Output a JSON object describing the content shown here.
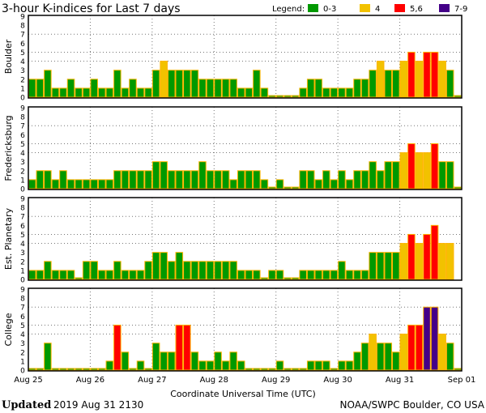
{
  "chart_data": {
    "type": "bar",
    "title": "3-hour K-indices for Last 7 days",
    "legend": {
      "label": "Legend:",
      "placement": "top-right",
      "entries": [
        {
          "label": "0-3",
          "color": "#009900"
        },
        {
          "label": "4",
          "color": "#f2c200"
        },
        {
          "label": "5,6",
          "color": "#ff0000"
        },
        {
          "label": "7-9",
          "color": "#440088"
        }
      ]
    },
    "bar_border_color": "#ffb400",
    "xlabel": "Coordinate Universal Time (UTC)",
    "x_tick_labels": [
      "Aug 25",
      "Aug 26",
      "Aug 27",
      "Aug 28",
      "Aug 29",
      "Aug 30",
      "Aug 31",
      "Sep 01"
    ],
    "y_tick_labels": [
      "0",
      "1",
      "2",
      "3",
      "4",
      "5",
      "6",
      "7",
      "8",
      "9"
    ],
    "ylim": [
      0,
      9
    ],
    "interval_hours": 3,
    "grid": {
      "horizontal_at": [
        4,
        5,
        7
      ],
      "vertical": "daily"
    },
    "series": [
      {
        "name": "Boulder",
        "values": [
          2,
          2,
          3,
          1,
          1,
          2,
          1,
          1,
          2,
          1,
          1,
          3,
          1,
          2,
          1,
          1,
          3,
          4,
          3,
          3,
          3,
          3,
          2,
          2,
          2,
          2,
          2,
          1,
          1,
          3,
          1,
          0,
          0,
          0,
          0,
          1,
          2,
          2,
          1,
          1,
          1,
          1,
          2,
          2,
          3,
          4,
          3,
          3,
          4,
          5,
          4,
          5,
          5,
          4,
          3,
          0
        ]
      },
      {
        "name": "Fredericksburg",
        "values": [
          1,
          2,
          2,
          1,
          2,
          1,
          1,
          1,
          1,
          1,
          1,
          2,
          2,
          2,
          2,
          2,
          3,
          3,
          2,
          2,
          2,
          2,
          3,
          2,
          2,
          2,
          1,
          2,
          2,
          2,
          1,
          0,
          1,
          0,
          0,
          2,
          2,
          1,
          2,
          1,
          2,
          1,
          2,
          2,
          3,
          2,
          3,
          3,
          4,
          5,
          4,
          4,
          5,
          3,
          3,
          0
        ]
      },
      {
        "name": "Est. Planetary",
        "values": [
          1,
          1,
          2,
          1,
          1,
          1,
          0,
          2,
          2,
          1,
          1,
          2,
          1,
          1,
          1,
          2,
          3,
          3,
          2,
          3,
          2,
          2,
          2,
          2,
          2,
          2,
          2,
          1,
          1,
          1,
          0,
          1,
          1,
          0,
          0,
          1,
          1,
          1,
          1,
          1,
          2,
          1,
          1,
          1,
          3,
          3,
          3,
          3,
          4,
          5,
          4,
          5,
          6,
          4,
          4,
          null
        ]
      },
      {
        "name": "College",
        "values": [
          0,
          0,
          3,
          0,
          0,
          0,
          0,
          0,
          0,
          0,
          1,
          5,
          2,
          0,
          1,
          0,
          3,
          2,
          2,
          5,
          5,
          2,
          1,
          1,
          2,
          1,
          2,
          1,
          0,
          0,
          0,
          0,
          1,
          0,
          0,
          0,
          1,
          1,
          1,
          0,
          1,
          1,
          2,
          3,
          4,
          3,
          3,
          2,
          4,
          5,
          5,
          7,
          7,
          4,
          3,
          0
        ]
      }
    ]
  },
  "footer": {
    "updated_label": "Updated",
    "updated_value": "2019 Aug 31 2130",
    "source": "NOAA/SWPC Boulder, CO USA"
  }
}
